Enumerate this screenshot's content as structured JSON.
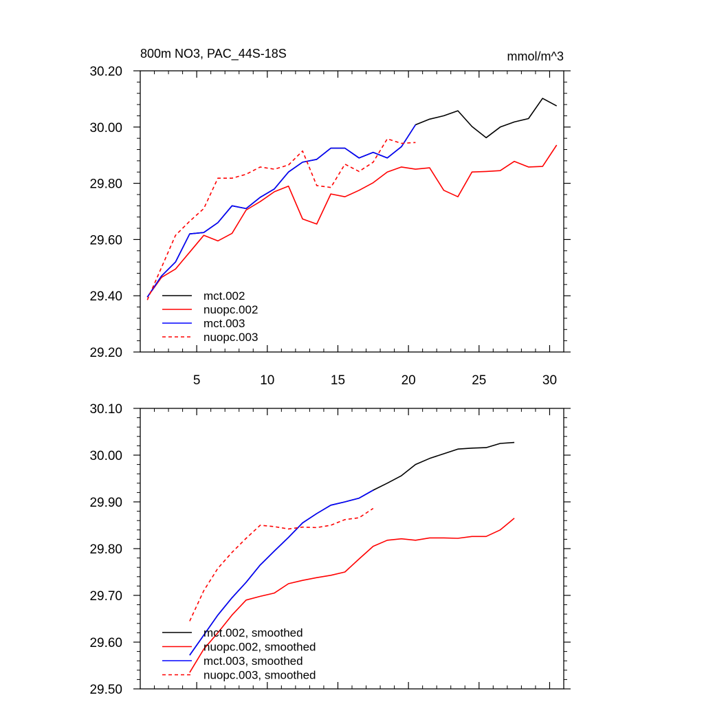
{
  "chart_data": [
    {
      "type": "line",
      "title": "800m NO3, PAC_44S-18S",
      "units": "mmol/m^3",
      "xlim": [
        1.0,
        31.0
      ],
      "ylim": [
        29.2,
        30.2
      ],
      "xticks": [
        5,
        10,
        15,
        20,
        25,
        30
      ],
      "xtick_labels": [
        "5",
        "10",
        "15",
        "20",
        "25",
        "30"
      ],
      "yticks": [
        29.2,
        29.4,
        29.6,
        29.8,
        30.0,
        30.2
      ],
      "ytick_labels": [
        "29.20",
        "29.40",
        "29.60",
        "29.80",
        "30.00",
        "30.20"
      ],
      "legend_position": "bottom-left",
      "series": [
        {
          "name": "mct.002",
          "color": "#000000",
          "dashed": false,
          "x": [
            1.5,
            2.5,
            3.5,
            4.5,
            5.5,
            6.5,
            7.5,
            8.5,
            9.5,
            10.5,
            11.5,
            12.5,
            13.5,
            14.5,
            15.5,
            16.5,
            17.5,
            18.5,
            19.5,
            20.5,
            21.5,
            22.5,
            23.5,
            24.5,
            25.5,
            26.5,
            27.5,
            28.5,
            29.5,
            30.5
          ],
          "y": [
            29.395,
            29.47,
            29.52,
            29.62,
            29.625,
            29.66,
            29.72,
            29.71,
            29.75,
            29.78,
            29.84,
            29.875,
            29.885,
            29.925,
            29.925,
            29.89,
            29.91,
            29.89,
            29.93,
            30.008,
            30.028,
            30.04,
            30.058,
            30.002,
            29.962,
            30.0,
            30.018,
            30.03,
            30.102,
            30.075
          ]
        },
        {
          "name": "nuopc.002",
          "color": "#ff0000",
          "dashed": false,
          "x": [
            1.5,
            2.5,
            3.5,
            4.5,
            5.5,
            6.5,
            7.5,
            8.5,
            9.5,
            10.5,
            11.5,
            12.5,
            13.5,
            14.5,
            15.5,
            16.5,
            17.5,
            18.5,
            19.5,
            20.5,
            21.5,
            22.5,
            23.5,
            24.5,
            25.5,
            26.5,
            27.5,
            28.5,
            29.5,
            30.5
          ],
          "y": [
            29.395,
            29.465,
            29.495,
            29.555,
            29.615,
            29.595,
            29.622,
            29.705,
            29.735,
            29.77,
            29.79,
            29.673,
            29.655,
            29.762,
            29.752,
            29.775,
            29.802,
            29.84,
            29.858,
            29.85,
            29.855,
            29.775,
            29.752,
            29.84,
            29.842,
            29.845,
            29.878,
            29.858,
            29.86,
            29.936
          ]
        },
        {
          "name": "mct.003",
          "color": "#0000ff",
          "dashed": false,
          "x": [
            1.5,
            2.5,
            3.5,
            4.5,
            5.5,
            6.5,
            7.5,
            8.5,
            9.5,
            10.5,
            11.5,
            12.5,
            13.5,
            14.5,
            15.5,
            16.5,
            17.5,
            18.5,
            19.5,
            20.5
          ],
          "y": [
            29.395,
            29.47,
            29.52,
            29.62,
            29.625,
            29.66,
            29.72,
            29.71,
            29.75,
            29.78,
            29.84,
            29.875,
            29.885,
            29.925,
            29.925,
            29.89,
            29.91,
            29.89,
            29.93,
            30.008
          ]
        },
        {
          "name": "nuopc.003",
          "color": "#ff0000",
          "dashed": true,
          "x": [
            1.5,
            2.5,
            3.5,
            4.5,
            5.5,
            6.5,
            7.5,
            8.5,
            9.5,
            10.5,
            11.5,
            12.5,
            13.5,
            14.5,
            15.5,
            16.5,
            17.5,
            18.5,
            19.5,
            20.5
          ],
          "y": [
            29.385,
            29.5,
            29.615,
            29.665,
            29.71,
            29.818,
            29.818,
            29.832,
            29.858,
            29.85,
            29.865,
            29.915,
            29.792,
            29.785,
            29.868,
            29.842,
            29.875,
            29.958,
            29.942,
            29.945
          ]
        }
      ]
    },
    {
      "type": "line",
      "title": "",
      "units": "",
      "xlim": [
        1.0,
        31.0
      ],
      "ylim": [
        29.5,
        30.1
      ],
      "xticks": [
        5,
        10,
        15,
        20,
        25,
        30
      ],
      "xtick_labels": [],
      "yticks": [
        29.5,
        29.6,
        29.7,
        29.8,
        29.9,
        30.0,
        30.1
      ],
      "ytick_labels": [
        "29.50",
        "29.60",
        "29.70",
        "29.80",
        "29.90",
        "30.00",
        "30.10"
      ],
      "legend_position": "bottom-left",
      "series": [
        {
          "name": "mct.002, smoothed",
          "color": "#000000",
          "dashed": false,
          "x": [
            4.5,
            5.5,
            6.5,
            7.5,
            8.5,
            9.5,
            10.5,
            11.5,
            12.5,
            13.5,
            14.5,
            15.5,
            16.5,
            17.5,
            18.5,
            19.5,
            20.5,
            21.5,
            22.5,
            23.5,
            24.5,
            25.5,
            26.5,
            27.5
          ],
          "y": [
            29.572,
            29.615,
            29.658,
            29.695,
            29.728,
            29.765,
            29.795,
            29.824,
            29.855,
            29.875,
            29.893,
            29.9,
            29.908,
            29.925,
            29.94,
            29.956,
            29.98,
            29.993,
            30.003,
            30.013,
            30.015,
            30.016,
            30.025,
            30.027
          ]
        },
        {
          "name": "nuopc.002, smoothed",
          "color": "#ff0000",
          "dashed": false,
          "x": [
            4.5,
            5.5,
            6.5,
            7.5,
            8.5,
            9.5,
            10.5,
            11.5,
            12.5,
            13.5,
            14.5,
            15.5,
            16.5,
            17.5,
            18.5,
            19.5,
            20.5,
            21.5,
            22.5,
            23.5,
            24.5,
            25.5,
            26.5,
            27.5
          ],
          "y": [
            29.535,
            29.585,
            29.62,
            29.658,
            29.69,
            29.698,
            29.705,
            29.725,
            29.732,
            29.738,
            29.743,
            29.75,
            29.778,
            29.805,
            29.818,
            29.821,
            29.818,
            29.823,
            29.823,
            29.822,
            29.826,
            29.826,
            29.84,
            29.865
          ]
        },
        {
          "name": "mct.003, smoothed",
          "color": "#0000ff",
          "dashed": false,
          "x": [
            4.5,
            5.5,
            6.5,
            7.5,
            8.5,
            9.5,
            10.5,
            11.5,
            12.5,
            13.5,
            14.5,
            15.5,
            16.5,
            17.5
          ],
          "y": [
            29.572,
            29.615,
            29.658,
            29.695,
            29.728,
            29.765,
            29.795,
            29.824,
            29.855,
            29.875,
            29.893,
            29.9,
            29.908,
            29.925
          ]
        },
        {
          "name": "nuopc.003, smoothed",
          "color": "#ff0000",
          "dashed": true,
          "x": [
            4.5,
            5.5,
            6.5,
            7.5,
            8.5,
            9.5,
            10.5,
            11.5,
            12.5,
            13.5,
            14.5,
            15.5,
            16.5,
            17.5
          ],
          "y": [
            29.645,
            29.71,
            29.758,
            29.792,
            29.822,
            29.85,
            29.847,
            29.842,
            29.846,
            29.845,
            29.85,
            29.862,
            29.866,
            29.886
          ]
        }
      ]
    }
  ]
}
